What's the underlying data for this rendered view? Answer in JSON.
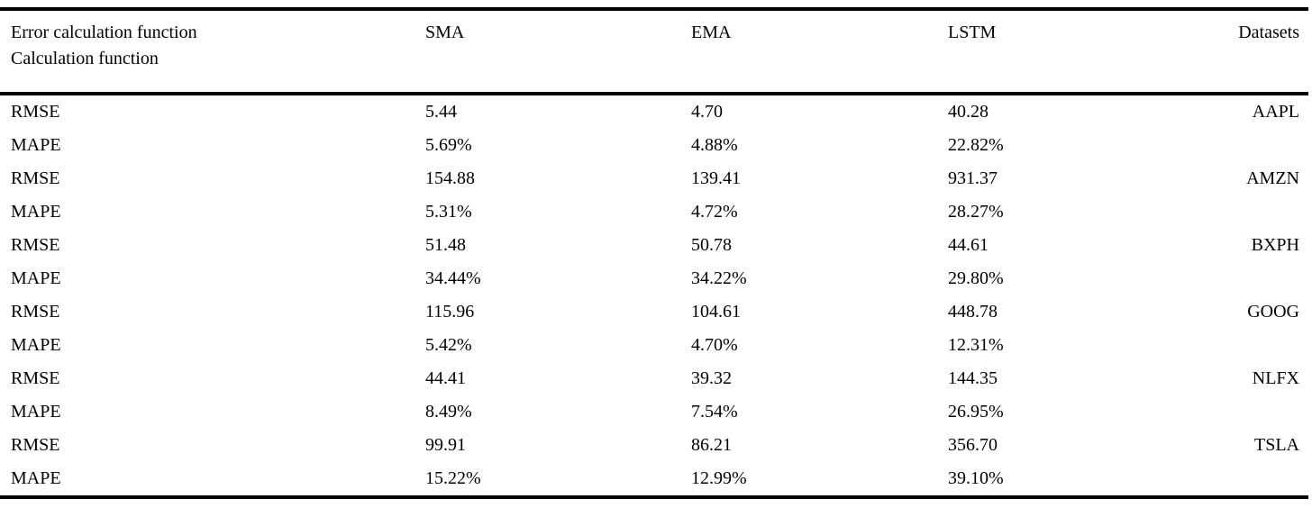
{
  "colors": {
    "background": "#ffffff",
    "text": "#000000",
    "rule": "#000000"
  },
  "table": {
    "header": {
      "col1_line1": "Error calculation function",
      "col1_line2": "Calculation function",
      "col_sma": "SMA",
      "col_ema": "EMA",
      "col_lstm": "LSTM",
      "col_datasets": "Datasets"
    },
    "rows": [
      {
        "metric": "RMSE",
        "sma": "5.44",
        "ema": "4.70",
        "lstm": "40.28",
        "dataset": "AAPL"
      },
      {
        "metric": "MAPE",
        "sma": "5.69%",
        "ema": "4.88%",
        "lstm": "22.82%",
        "dataset": ""
      },
      {
        "metric": "RMSE",
        "sma": "154.88",
        "ema": "139.41",
        "lstm": "931.37",
        "dataset": "AMZN"
      },
      {
        "metric": "MAPE",
        "sma": "5.31%",
        "ema": "4.72%",
        "lstm": "28.27%",
        "dataset": ""
      },
      {
        "metric": "RMSE",
        "sma": "51.48",
        "ema": "50.78",
        "lstm": "44.61",
        "dataset": "BXPH"
      },
      {
        "metric": "MAPE",
        "sma": "34.44%",
        "ema": "34.22%",
        "lstm": "29.80%",
        "dataset": ""
      },
      {
        "metric": "RMSE",
        "sma": "115.96",
        "ema": "104.61",
        "lstm": "448.78",
        "dataset": "GOOG"
      },
      {
        "metric": "MAPE",
        "sma": "5.42%",
        "ema": "4.70%",
        "lstm": "12.31%",
        "dataset": ""
      },
      {
        "metric": "RMSE",
        "sma": "44.41",
        "ema": "39.32",
        "lstm": "144.35",
        "dataset": "NLFX"
      },
      {
        "metric": "MAPE",
        "sma": "8.49%",
        "ema": "7.54%",
        "lstm": "26.95%",
        "dataset": ""
      },
      {
        "metric": "RMSE",
        "sma": "99.91",
        "ema": "86.21",
        "lstm": "356.70",
        "dataset": "TSLA"
      },
      {
        "metric": "MAPE",
        "sma": "15.22%",
        "ema": "12.99%",
        "lstm": "39.10%",
        "dataset": ""
      }
    ]
  }
}
